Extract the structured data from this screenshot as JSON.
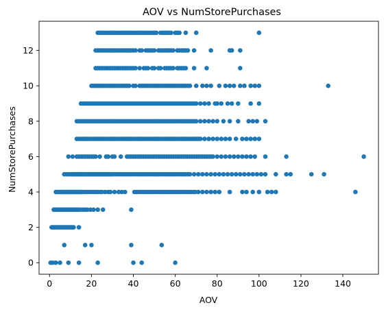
{
  "chart_data": {
    "type": "scatter",
    "title": "AOV vs NumStorePurchases",
    "xlabel": "AOV",
    "ylabel": "NumStorePurchases",
    "xlim": [
      -5,
      157
    ],
    "ylim": [
      -0.65,
      13.65
    ],
    "xticks": [
      0,
      20,
      40,
      60,
      80,
      100,
      120,
      140
    ],
    "yticks": [
      0,
      2,
      4,
      6,
      8,
      10,
      12
    ],
    "grid": false,
    "legend": "none",
    "marker_color": "#1f77b4",
    "series": [
      {
        "rows": [
          {
            "y": 0,
            "x": [
              0.5,
              1.5,
              3,
              5,
              9,
              14,
              23,
              40,
              44,
              60
            ]
          },
          {
            "y": 1,
            "x": [
              7,
              17,
              20,
              39,
              53.5
            ]
          },
          {
            "y": 2,
            "x": [
              1,
              1.5,
              2,
              2.5,
              3,
              3.5,
              4,
              4.5,
              5,
              5.5,
              6,
              6.5,
              7,
              7.5,
              8,
              8.5,
              9,
              9.5,
              10,
              10.5,
              11,
              11.5,
              14
            ]
          },
          {
            "y": 3,
            "x": [
              2,
              2.5,
              3,
              3.5,
              4,
              4.5,
              5,
              5.5,
              6,
              6.5,
              7,
              7.5,
              8,
              8.5,
              9,
              9.5,
              10,
              10.5,
              11,
              11.5,
              12,
              12.5,
              13,
              13.5,
              14,
              15,
              16,
              17,
              18,
              19.5,
              21,
              23,
              25.5,
              39
            ]
          },
          {
            "y": 4,
            "x": [
              3,
              3.5,
              4,
              4.5,
              5,
              5.5,
              6,
              6.5,
              7,
              7.5,
              8,
              8.5,
              9,
              9.5,
              10,
              10.5,
              11,
              11.5,
              12,
              12.5,
              13,
              13.5,
              14,
              14.5,
              15,
              15.5,
              16,
              17,
              18,
              19,
              20,
              21,
              22,
              23,
              24,
              25,
              26.5,
              28,
              29,
              31,
              33,
              34.5,
              36,
              40.5,
              41.5,
              42.5,
              43.5,
              44.5,
              45.5,
              46.5,
              47.5,
              48.5,
              49.5,
              50.5,
              51.5,
              52.5,
              53.5,
              54.5,
              55.5,
              56.5,
              57.5,
              58.5,
              59.5,
              60.5,
              61.5,
              62.5,
              63.5,
              64.5,
              65.5,
              66.5,
              67.5,
              68.5,
              69.5,
              71,
              73,
              75,
              77,
              79,
              81,
              86,
              92,
              94,
              97,
              100,
              104,
              106,
              108,
              146
            ]
          },
          {
            "y": 5,
            "x": [
              7,
              8,
              9,
              10,
              10.5,
              11,
              11.5,
              12,
              12.5,
              13,
              13.5,
              14,
              14.5,
              15,
              15.5,
              16,
              16.5,
              17,
              17.5,
              18,
              18.5,
              19,
              19.5,
              20,
              20.5,
              21,
              21.5,
              22,
              22.5,
              23,
              23.5,
              24,
              24.5,
              25,
              25.5,
              26,
              26.5,
              27,
              27.5,
              28,
              28.5,
              29,
              29.5,
              30,
              31,
              32,
              33,
              34,
              35,
              36,
              37,
              38,
              39,
              40,
              41,
              42,
              43,
              44,
              45,
              46,
              47,
              48,
              49,
              50,
              51,
              52,
              53,
              54,
              55,
              56,
              57,
              58,
              59,
              60,
              61,
              62,
              63,
              64,
              65,
              66,
              67,
              69,
              71,
              73,
              75,
              77,
              79,
              81,
              83,
              85,
              87,
              89,
              91,
              93,
              95,
              97,
              99,
              101,
              103,
              108,
              113,
              115,
              125,
              131
            ]
          },
          {
            "y": 6,
            "x": [
              9,
              11,
              13,
              14,
              15,
              16,
              17,
              18,
              19,
              20,
              21,
              22,
              24,
              27,
              28,
              30,
              31,
              34,
              37,
              38,
              39,
              40,
              41,
              42,
              43,
              44,
              45,
              46,
              47,
              48,
              49,
              50,
              51,
              52,
              53,
              54,
              55,
              56,
              57,
              58,
              59,
              60,
              61,
              62,
              63,
              64,
              65,
              66,
              67,
              68,
              69,
              70,
              71,
              72,
              73,
              74,
              75,
              76,
              77,
              78,
              80,
              82,
              84,
              86,
              88,
              90,
              92,
              94,
              96,
              98,
              103,
              113,
              150
            ]
          },
          {
            "y": 7,
            "x": [
              13,
              14,
              15,
              16,
              17,
              18,
              19,
              20,
              21,
              22,
              23,
              24,
              25,
              26,
              27,
              28,
              29,
              30,
              31,
              32,
              33,
              34,
              35,
              36,
              37,
              38,
              39,
              40,
              41,
              42,
              43,
              44,
              45,
              46,
              47,
              48,
              49,
              50,
              51,
              52,
              53,
              54,
              55,
              56,
              57,
              58,
              59,
              60,
              61,
              62,
              63,
              64,
              65,
              66,
              67,
              68,
              69,
              70,
              71,
              72,
              74,
              76,
              78,
              80,
              82,
              84,
              86,
              89,
              92,
              94,
              96,
              98,
              100
            ]
          },
          {
            "y": 8,
            "x": [
              13,
              14,
              15,
              16,
              17,
              18,
              19,
              20,
              21,
              22,
              23,
              24,
              25,
              26,
              27,
              28,
              29,
              30,
              31,
              32,
              33,
              34,
              35,
              36,
              37,
              38,
              39,
              40,
              41,
              42,
              43,
              44,
              45,
              46,
              47,
              48,
              49,
              50,
              51,
              52,
              53,
              54,
              55,
              56,
              57,
              58,
              59,
              60,
              61,
              62,
              63,
              64,
              65,
              66,
              67,
              68,
              69,
              70,
              72,
              74,
              76,
              78,
              80,
              83,
              86,
              90,
              95,
              97,
              99,
              103
            ]
          },
          {
            "y": 9,
            "x": [
              15,
              16,
              17,
              18,
              19,
              20,
              21,
              22,
              23,
              24,
              25,
              26,
              27,
              28,
              29,
              30,
              31,
              32,
              33,
              34,
              35,
              36,
              37,
              38,
              39,
              40,
              41,
              42,
              43,
              44,
              45,
              46,
              47,
              48,
              49,
              50,
              51,
              52,
              53,
              54,
              55,
              56,
              57,
              58,
              59,
              60,
              61,
              62,
              63,
              64,
              65,
              66,
              67,
              68,
              69,
              70,
              72,
              74,
              76,
              79,
              80,
              82,
              85,
              87,
              90,
              96,
              100
            ]
          },
          {
            "y": 10,
            "x": [
              20,
              21,
              22,
              23,
              24,
              25,
              26,
              27,
              28,
              29,
              30,
              31,
              32,
              33,
              34,
              35,
              36,
              37,
              38,
              40,
              41,
              43,
              44,
              45,
              46,
              47,
              48,
              49,
              50,
              51,
              52,
              53,
              54,
              55,
              56,
              57,
              58,
              59,
              60,
              61,
              62,
              63,
              64,
              65,
              66,
              67,
              70,
              73,
              75,
              77,
              81,
              84,
              86,
              88,
              91,
              93,
              96,
              98,
              100,
              133
            ]
          },
          {
            "y": 11,
            "x": [
              22,
              23,
              24,
              25,
              26,
              27,
              28,
              29,
              30,
              31,
              32,
              33,
              34,
              35,
              36,
              37,
              38,
              39,
              40,
              41,
              43,
              45,
              46,
              47,
              49,
              50,
              52,
              53,
              55,
              56,
              57,
              58,
              59,
              61,
              62,
              63,
              64,
              65,
              69,
              75,
              91
            ]
          },
          {
            "y": 12,
            "x": [
              22,
              23,
              24,
              25,
              26,
              27,
              28,
              29,
              30,
              31,
              32,
              33,
              34,
              35,
              36,
              37,
              38,
              39,
              40,
              41,
              43,
              44,
              46,
              47,
              48,
              49,
              50,
              52,
              53,
              54,
              55,
              56,
              57,
              58,
              59,
              61,
              62,
              63,
              64,
              65,
              66,
              69,
              77,
              86,
              87,
              91
            ]
          },
          {
            "y": 13,
            "x": [
              23,
              24,
              25,
              26,
              27,
              28,
              29,
              30,
              31,
              32,
              33,
              34,
              35,
              36,
              37,
              38,
              39,
              40,
              41,
              42,
              43,
              44,
              45,
              46,
              47,
              48,
              49,
              50,
              51,
              53,
              54,
              55,
              56,
              57,
              58,
              60,
              61,
              62,
              65,
              70,
              100
            ]
          }
        ]
      }
    ]
  }
}
